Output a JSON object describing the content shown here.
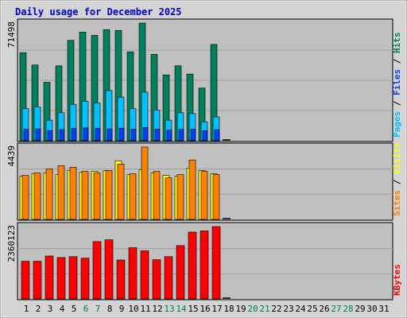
{
  "title": "Daily usage for December 2025",
  "colors": {
    "hits": "#00805c",
    "files": "#0040ff",
    "pages": "#00c0ff",
    "visits": "#ffff00",
    "sites": "#ff8000",
    "kbytes": "#ff0000",
    "weekend": "#00805c",
    "weekday": "#000000",
    "panel_bg": "#c0c0c0",
    "frame_bg": "#d4d4d4",
    "title": "#0000cc"
  },
  "chart_data": [
    {
      "type": "bar",
      "panel": "hits-files-pages",
      "ymax_label": "71498",
      "ylim": [
        0,
        71498
      ],
      "grid": true,
      "side_legend": [
        {
          "text": "Pages",
          "color_key": "pages"
        },
        {
          "text": " / ",
          "color_key": "weekday"
        },
        {
          "text": "Files",
          "color_key": "files"
        },
        {
          "text": " / ",
          "color_key": "weekday"
        },
        {
          "text": "Hits",
          "color_key": "hits"
        }
      ],
      "series": [
        {
          "key": "hits",
          "values": [
            53500,
            46000,
            35500,
            45500,
            61000,
            66000,
            64000,
            67500,
            67000,
            54000,
            71498,
            52500,
            40000,
            45500,
            40500,
            32000,
            58500
          ]
        },
        {
          "key": "files",
          "values": [
            7000,
            7200,
            6200,
            6800,
            7400,
            7800,
            7500,
            7200,
            7600,
            7000,
            8000,
            7100,
            6500,
            6900,
            7000,
            6100,
            6700
          ]
        },
        {
          "key": "pages",
          "values": [
            19500,
            20500,
            12500,
            17000,
            22000,
            24000,
            23000,
            30500,
            26500,
            19500,
            29500,
            18500,
            12500,
            17000,
            16500,
            11500,
            14500
          ]
        }
      ]
    },
    {
      "type": "bar",
      "panel": "visits-sites",
      "ymax_label": "4439",
      "ylim": [
        0,
        4439
      ],
      "grid": true,
      "side_legend": [
        {
          "text": "Sites",
          "color_key": "sites"
        },
        {
          "text": " / ",
          "color_key": "weekday"
        },
        {
          "text": "Visits",
          "color_key": "visits"
        }
      ],
      "series": [
        {
          "key": "visits",
          "values": [
            2650,
            2800,
            2850,
            2750,
            3000,
            2900,
            2950,
            3000,
            3600,
            2750,
            3050,
            2850,
            2700,
            2650,
            3150,
            3000,
            2800
          ]
        },
        {
          "key": "sites",
          "values": [
            2700,
            2850,
            3100,
            3300,
            3200,
            2950,
            2850,
            3000,
            3400,
            2800,
            4439,
            2950,
            2550,
            2750,
            3650,
            2950,
            2750
          ]
        }
      ]
    },
    {
      "type": "bar",
      "panel": "kbytes",
      "ymax_label": "2360123",
      "ylim": [
        0,
        2360123
      ],
      "grid": true,
      "side_legend": [
        {
          "text": "KBytes",
          "color_key": "kbytes"
        }
      ],
      "series": [
        {
          "key": "kbytes",
          "values": [
            1230000,
            1230000,
            1400000,
            1350000,
            1380000,
            1330000,
            1870000,
            1930000,
            1270000,
            1670000,
            1570000,
            1280000,
            1380000,
            1740000,
            2180000,
            2220000,
            2360123
          ]
        }
      ]
    }
  ],
  "days": {
    "labels": [
      "1",
      "2",
      "3",
      "4",
      "5",
      "6",
      "7",
      "8",
      "9",
      "10",
      "11",
      "12",
      "13",
      "14",
      "15",
      "16",
      "17",
      "18",
      "19",
      "20",
      "21",
      "22",
      "23",
      "24",
      "25",
      "26",
      "27",
      "28",
      "29",
      "30",
      "31"
    ],
    "weekend": [
      "6",
      "7",
      "13",
      "14",
      "20",
      "21",
      "27",
      "28"
    ]
  }
}
